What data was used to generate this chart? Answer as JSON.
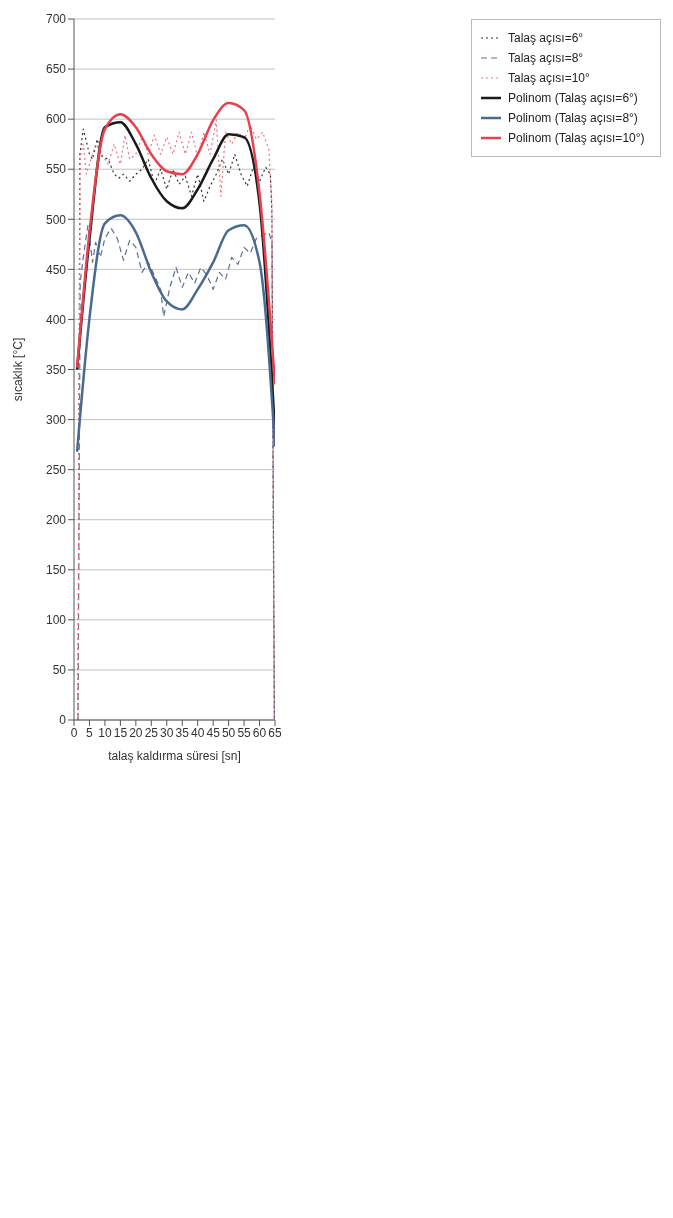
{
  "chart_data": {
    "type": "line",
    "xlabel": "talaş kaldırma süresi [sn]",
    "ylabel": "sıcaklık [°C]",
    "xlim": [
      0,
      65
    ],
    "ylim": [
      0,
      700
    ],
    "xticks": [
      0,
      5,
      10,
      15,
      20,
      25,
      30,
      35,
      40,
      45,
      50,
      55,
      60,
      65
    ],
    "yticks": [
      0,
      50,
      100,
      150,
      200,
      250,
      300,
      350,
      400,
      450,
      500,
      550,
      600,
      650,
      700
    ],
    "grid": "y",
    "legend": "right",
    "marker": "none",
    "series": [
      {
        "name": "Talaş açısı=6°",
        "color": "#333333",
        "line_style": "dotted",
        "x": [
          1.3,
          1.9,
          3,
          5,
          6,
          7.5,
          9,
          11,
          13,
          14.5,
          16,
          18,
          20,
          22,
          24,
          26,
          28,
          30,
          32,
          34,
          36,
          38,
          40,
          42,
          44,
          46,
          48,
          50,
          52,
          54,
          56,
          58,
          60,
          62,
          63.5,
          64,
          64.8
        ],
        "values": [
          0,
          565,
          590,
          565,
          560,
          580,
          563,
          560,
          545,
          541,
          545,
          538,
          545,
          550,
          560,
          535,
          550,
          530,
          550,
          535,
          543,
          523,
          545,
          518,
          533,
          545,
          560,
          545,
          565,
          545,
          533,
          552,
          538,
          552,
          545,
          506,
          0
        ]
      },
      {
        "name": "Talaş açısı=8°",
        "color": "#5a6f9a",
        "line_style": "dashed",
        "x": [
          1.3,
          2,
          3,
          4.5,
          6,
          7,
          8.5,
          10,
          12,
          14,
          16,
          18,
          20,
          22,
          24,
          26,
          28,
          29,
          31,
          33,
          35,
          37,
          39,
          41,
          43,
          45,
          47,
          49,
          51,
          53,
          55,
          57,
          59,
          61,
          63,
          64,
          64.8
        ],
        "values": [
          0,
          437,
          462,
          494,
          457,
          477,
          462,
          481,
          491,
          481,
          459,
          479,
          472,
          447,
          457,
          444,
          430,
          403,
          432,
          452,
          432,
          447,
          436,
          452,
          444,
          430,
          447,
          440,
          462,
          455,
          472,
          466,
          481,
          484,
          487,
          477,
          0
        ]
      },
      {
        "name": "Talaş açısı=10°",
        "color": "#f07080",
        "line_style": "dotted",
        "x": [
          1.3,
          2,
          3,
          4,
          5.5,
          7,
          9,
          11,
          13,
          15,
          16.5,
          18,
          20,
          22,
          24,
          26,
          28,
          30,
          32,
          34,
          36,
          38,
          40,
          42,
          44,
          46,
          47.5,
          49,
          51,
          53,
          55,
          57,
          59,
          61,
          63,
          64,
          64.8
        ],
        "values": [
          0,
          562,
          575,
          545,
          560,
          575,
          565,
          555,
          575,
          555,
          584,
          560,
          565,
          582,
          565,
          584,
          565,
          582,
          565,
          587,
          565,
          587,
          562,
          587,
          565,
          599,
          523,
          587,
          575,
          587,
          580,
          594,
          580,
          587,
          570,
          516,
          0
        ]
      },
      {
        "name": "Polinom (Talaş açısı=6°)",
        "color": "#1a1a1a",
        "line_style": "solid",
        "x": [
          1,
          5,
          10,
          15,
          20,
          25,
          30,
          35,
          40,
          45,
          50,
          55,
          60,
          65
        ],
        "values": [
          350,
          480,
          592,
          597,
          575,
          541,
          518,
          511,
          530,
          560,
          585,
          582,
          516,
          287
        ]
      },
      {
        "name": "Polinom (Talaş açısı=8°)",
        "color": "#4a6a90",
        "line_style": "solid",
        "x": [
          1,
          5,
          10,
          15,
          20,
          25,
          30,
          35,
          40,
          45,
          50,
          55,
          60,
          65
        ],
        "values": [
          268,
          401,
          496,
          504,
          487,
          447,
          418,
          410,
          430,
          457,
          489,
          494,
          457,
          273
        ]
      },
      {
        "name": "Polinom (Talaş açısı=10°)",
        "color": "#e8404e",
        "line_style": "solid",
        "x": [
          1,
          5,
          10,
          15,
          20,
          25,
          30,
          35,
          40,
          45,
          50,
          55,
          60,
          65
        ],
        "values": [
          352,
          487,
          590,
          605,
          592,
          565,
          548,
          545,
          565,
          599,
          616,
          609,
          526,
          335
        ]
      }
    ]
  }
}
